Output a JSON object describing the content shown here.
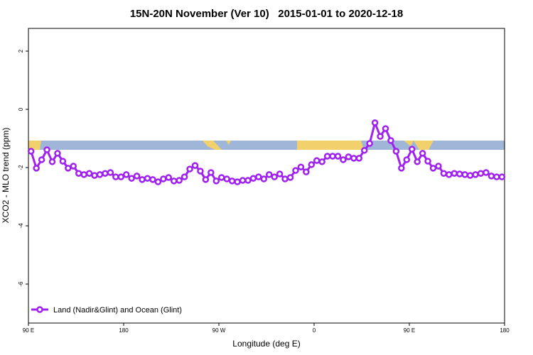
{
  "chart_data": {
    "type": "line",
    "title": "15N-20N November (Ver 10)   2015-01-01 to 2020-12-18",
    "xlabel": "Longitude (deg E)",
    "ylabel": "XCO2 - MLO trend (ppm)",
    "xlim": [
      90,
      540
    ],
    "ylim": [
      -7.34,
      2.78
    ],
    "xticks": [
      {
        "value": 90,
        "label": "90 E"
      },
      180,
      {
        "value": 270,
        "label": "90 W"
      },
      {
        "value": 360,
        "label": "0"
      },
      {
        "value": 450,
        "label": "90 E"
      },
      {
        "value": 540,
        "label": "180"
      }
    ],
    "yticks": [
      2,
      0,
      -2,
      -4,
      -6
    ],
    "legend": "bottom-left",
    "x": [
      92.5,
      97.5,
      102.5,
      107.5,
      112.5,
      117.5,
      122.5,
      127.5,
      132.5,
      137.5,
      142.5,
      147.5,
      152.5,
      157.5,
      162.5,
      167.5,
      172.5,
      177.5,
      182.5,
      187.5,
      192.5,
      197.5,
      202.5,
      207.5,
      212.5,
      217.5,
      222.5,
      227.5,
      232.5,
      237.5,
      242.5,
      247.5,
      252.5,
      257.5,
      262.5,
      267.5,
      272.5,
      277.5,
      282.5,
      287.5,
      292.5,
      297.5,
      302.5,
      307.5,
      312.5,
      317.5,
      322.5,
      327.5,
      332.5,
      337.5,
      342.5,
      347.5,
      352.5,
      357.5,
      362.5,
      367.5,
      372.5,
      377.5,
      382.5,
      387.5,
      392.5,
      397.5,
      402.5,
      407.5,
      412.5,
      417.5,
      422.5,
      427.5,
      432.5,
      437.5,
      442.5,
      447.5,
      452.5,
      457.5,
      462.5,
      467.5,
      472.5,
      477.5,
      482.5,
      487.5,
      492.5,
      497.5,
      502.5,
      507.5,
      512.5,
      517.5,
      522.5,
      527.5,
      532.5,
      537.5
    ],
    "series": [
      {
        "name": "Land (Nadir&Glint) and Ocean (Glint)",
        "color": "#a020f0",
        "values": [
          -1.44,
          -2.02,
          -1.73,
          -1.39,
          -1.8,
          -1.51,
          -1.78,
          -2.02,
          -1.95,
          -2.2,
          -2.24,
          -2.2,
          -2.27,
          -2.24,
          -2.2,
          -2.17,
          -2.32,
          -2.32,
          -2.24,
          -2.37,
          -2.29,
          -2.41,
          -2.37,
          -2.41,
          -2.49,
          -2.39,
          -2.34,
          -2.46,
          -2.44,
          -2.32,
          -2.05,
          -1.93,
          -2.12,
          -2.41,
          -2.17,
          -2.46,
          -2.34,
          -2.39,
          -2.46,
          -2.49,
          -2.44,
          -2.44,
          -2.37,
          -2.32,
          -2.39,
          -2.24,
          -2.32,
          -2.22,
          -2.39,
          -2.34,
          -2.1,
          -1.98,
          -2.15,
          -1.9,
          -1.76,
          -1.8,
          -1.61,
          -1.61,
          -1.61,
          -1.73,
          -1.63,
          -1.68,
          -1.68,
          -1.41,
          -1.17,
          -0.46,
          -0.93,
          -0.66,
          -1.07,
          -1.44,
          -2.02,
          -1.73,
          -1.37,
          -1.8,
          -1.51,
          -1.78,
          -2.02,
          -1.95,
          -2.2,
          -2.24,
          -2.2,
          -2.22,
          -2.24,
          -2.27,
          -2.24,
          -2.2,
          -2.17,
          -2.29,
          -2.32,
          -2.32
        ]
      }
    ]
  }
}
